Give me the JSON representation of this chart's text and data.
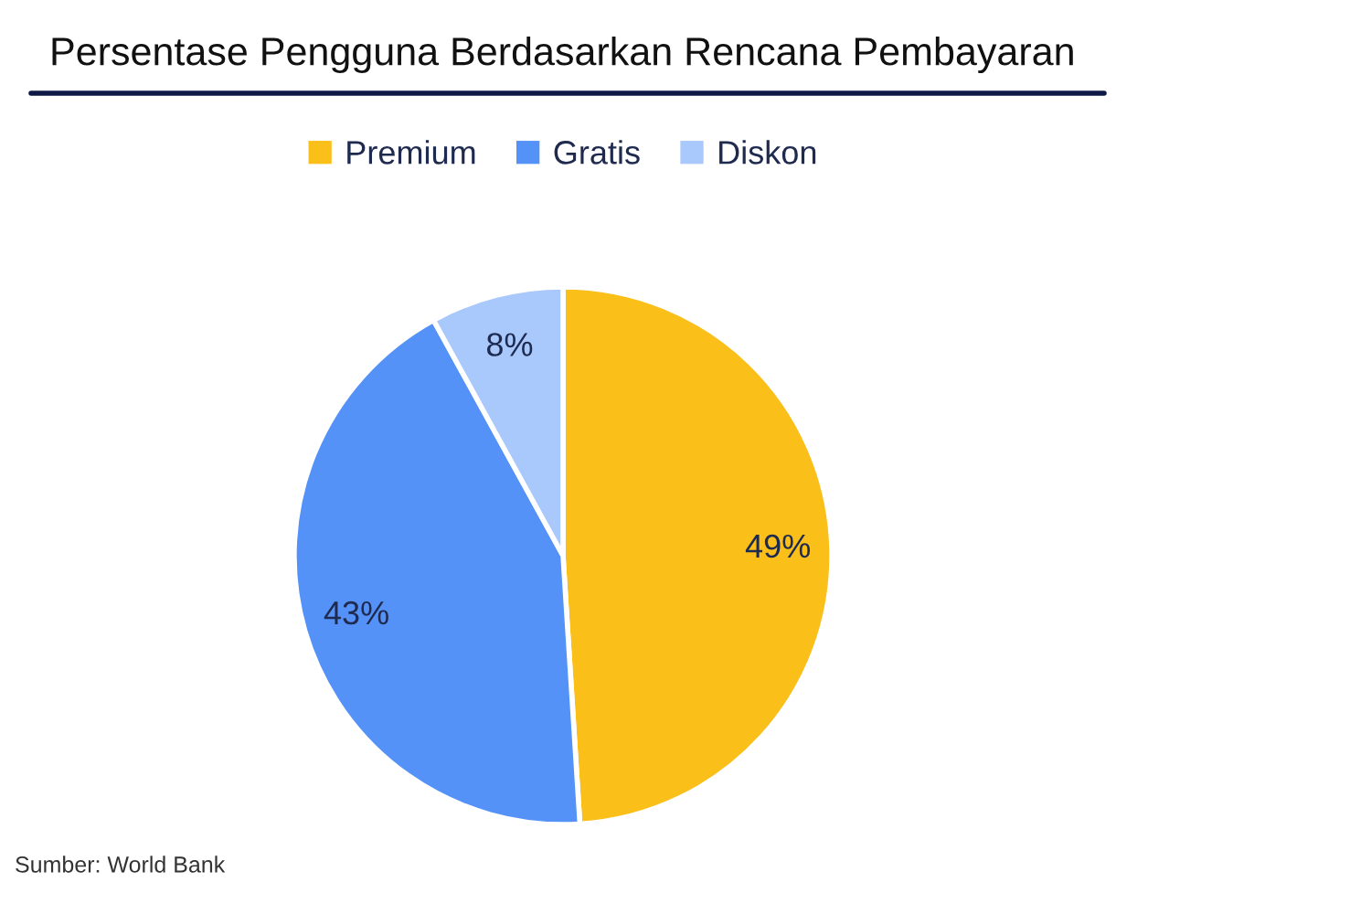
{
  "chart_data": {
    "type": "pie",
    "title": "Persentase Pengguna Berdasarkan Rencana Pembayaran",
    "categories": [
      "Premium",
      "Gratis",
      "Diskon"
    ],
    "values": [
      49,
      43,
      8
    ],
    "colors": [
      "#fbbf1a",
      "#5592f8",
      "#a9c8fb"
    ],
    "value_labels": [
      "49%",
      "43%",
      "8%"
    ],
    "legend": "top",
    "annotations": [
      "Sumber: World Bank"
    ]
  }
}
